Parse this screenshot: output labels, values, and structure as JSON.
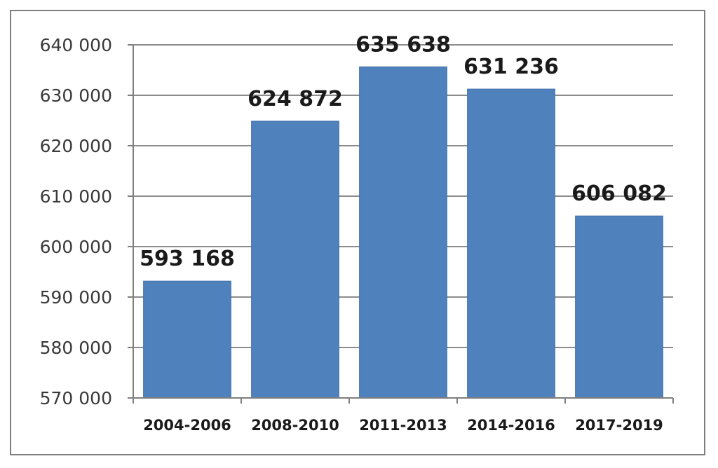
{
  "chart_data": {
    "type": "bar",
    "title": "",
    "xlabel": "",
    "ylabel": "",
    "categories": [
      "2004-2006",
      "2008-2010",
      "2011-2013",
      "2014-2016",
      "2017-2019"
    ],
    "values": [
      593168,
      624872,
      635638,
      631236,
      606082
    ],
    "value_labels": [
      "593 168",
      "624 872",
      "635 638",
      "631 236",
      "606 082"
    ],
    "ylim": [
      570000,
      640000
    ],
    "yticks": [
      570000,
      580000,
      590000,
      600000,
      610000,
      620000,
      630000,
      640000
    ],
    "ytick_labels": [
      "570 000",
      "580 000",
      "590 000",
      "600 000",
      "610 000",
      "620 000",
      "630 000",
      "640 000"
    ],
    "grid": "horizontal",
    "legend": "none",
    "colors": {
      "bar": "#4f81bd",
      "grid": "#8c8c8c",
      "axis": "#7f7f7f"
    }
  }
}
